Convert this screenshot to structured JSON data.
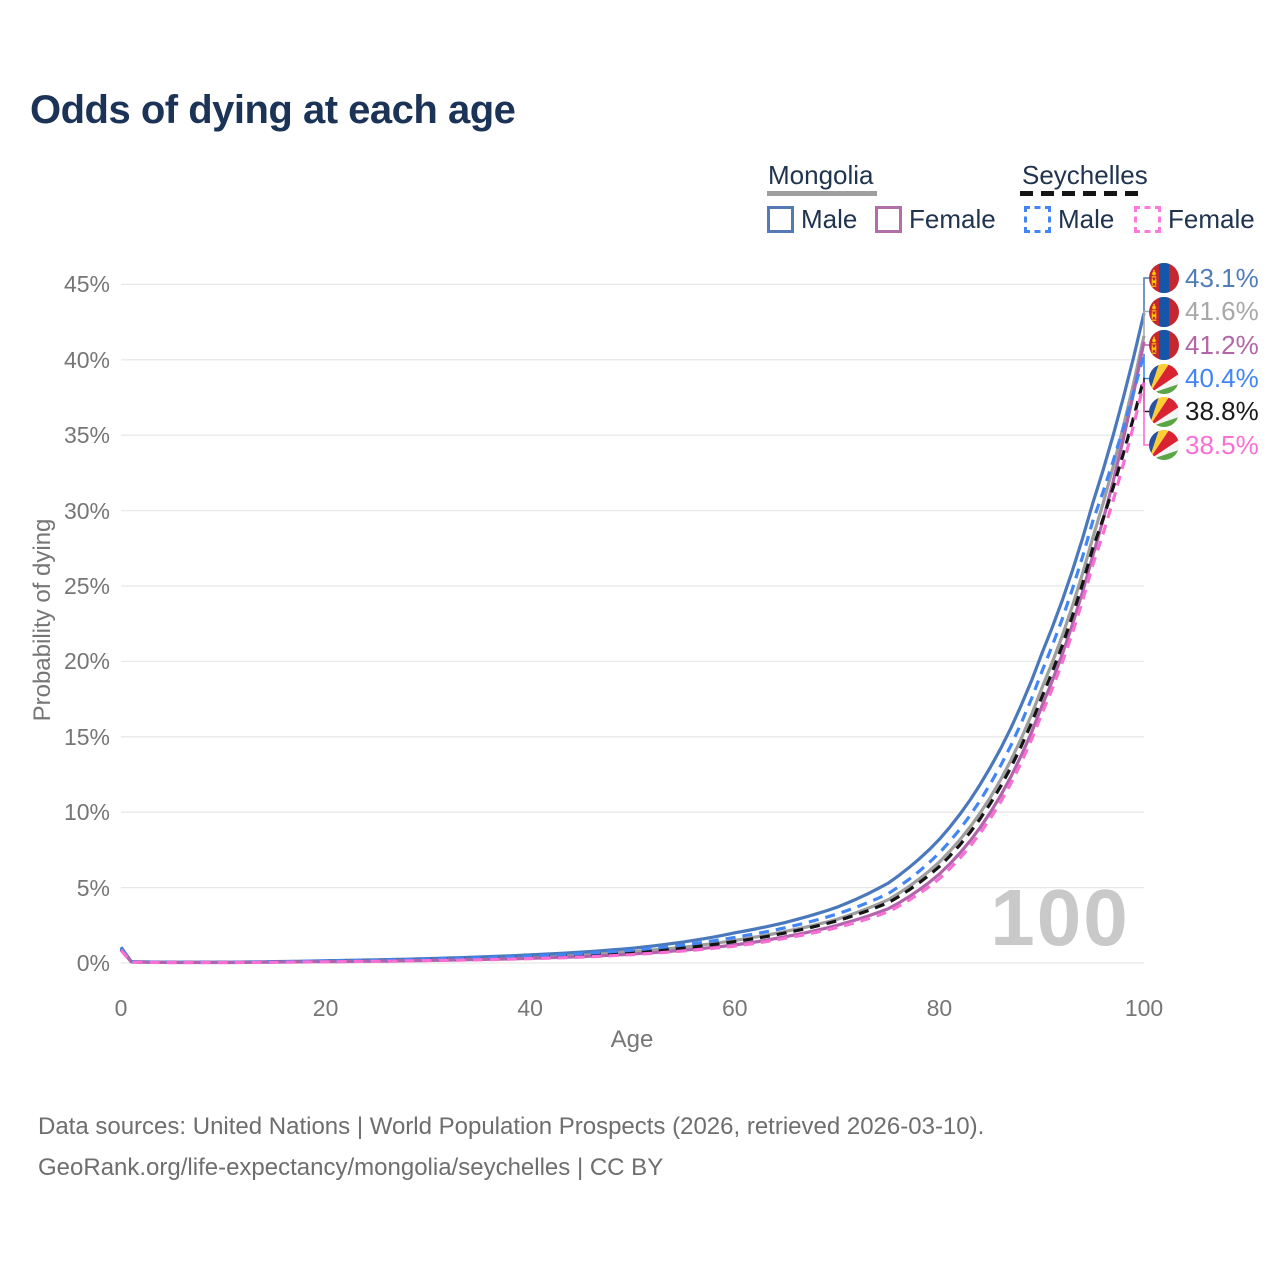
{
  "title": "Odds of dying at each age",
  "watermark": "100",
  "legend": {
    "groups": [
      {
        "name": "Mongolia",
        "line_style": "solid",
        "underline_color": "#9e9e9e",
        "items": [
          {
            "label": "Male",
            "color": "#5479b4"
          },
          {
            "label": "Female",
            "color": "#b06fa8"
          }
        ]
      },
      {
        "name": "Seychelles",
        "line_style": "dashed",
        "underline_color": "#151515",
        "items": [
          {
            "label": "Male",
            "color": "#4285f4"
          },
          {
            "label": "Female",
            "color": "#fc7bda"
          }
        ]
      }
    ]
  },
  "end_labels": [
    {
      "value": "43.1%",
      "color": "#4f7cba",
      "flag": "mongolia",
      "series": "mongolia_male"
    },
    {
      "value": "41.6%",
      "color": "#a8a8a8",
      "flag": "mongolia",
      "series": "mongolia_all"
    },
    {
      "value": "41.2%",
      "color": "#b465a8",
      "flag": "mongolia",
      "series": "mongolia_female"
    },
    {
      "value": "40.4%",
      "color": "#4285f4",
      "flag": "seychelles",
      "series": "seychelles_male"
    },
    {
      "value": "38.8%",
      "color": "#1a1a1a",
      "flag": "seychelles",
      "series": "seychelles_all"
    },
    {
      "value": "38.5%",
      "color": "#fb6ed6",
      "flag": "seychelles",
      "series": "seychelles_female"
    }
  ],
  "flags": {
    "mongolia": {
      "red": "#c4272f",
      "blue": "#1556a8",
      "yellow": "#f9cf02"
    },
    "seychelles": {
      "blue": "#2a52a0",
      "yellow": "#fcce33",
      "red": "#da2332",
      "white": "#f4f4f4",
      "green": "#5aa546"
    }
  },
  "footer": {
    "line1": "Data sources: United Nations | World Population Prospects (2026, retrieved 2026-03-10).",
    "line2": "GeoRank.org/life-expectancy/mongolia/seychelles | CC BY"
  },
  "chart_data": {
    "type": "line",
    "title": "Odds of dying at each age",
    "xlabel": "Age",
    "ylabel": "Probability of dying",
    "xlim": [
      0,
      100
    ],
    "ylim": [
      0,
      45
    ],
    "grid": true,
    "legend_position": "top-right",
    "yticks": {
      "values": [
        0,
        5,
        10,
        15,
        20,
        25,
        30,
        35,
        40,
        45
      ],
      "labels": [
        "0%",
        "5%",
        "10%",
        "15%",
        "20%",
        "25%",
        "30%",
        "35%",
        "40%",
        "45%"
      ]
    },
    "xticks": {
      "values": [
        0,
        20,
        40,
        60,
        80,
        100
      ],
      "labels": [
        "0",
        "20",
        "40",
        "60",
        "80",
        "100"
      ]
    },
    "x": [
      0,
      1,
      5,
      10,
      15,
      20,
      25,
      30,
      35,
      40,
      45,
      50,
      55,
      60,
      65,
      70,
      75,
      80,
      85,
      90,
      95,
      100
    ],
    "series": [
      {
        "id": "mongolia_all",
        "name": "Mongolia (all)",
        "color": "#9e9e9e",
        "dash": false,
        "values": [
          1.0,
          0.08,
          0.04,
          0.04,
          0.07,
          0.12,
          0.16,
          0.22,
          0.3,
          0.41,
          0.55,
          0.76,
          1.05,
          1.5,
          2.1,
          2.9,
          4.2,
          6.7,
          11.0,
          18.2,
          28.2,
          41.6
        ]
      },
      {
        "id": "mongolia_male",
        "name": "Mongolia Male",
        "color": "#4a78ba",
        "dash": false,
        "values": [
          1.05,
          0.09,
          0.05,
          0.05,
          0.09,
          0.15,
          0.21,
          0.29,
          0.4,
          0.54,
          0.72,
          0.98,
          1.4,
          2.0,
          2.7,
          3.7,
          5.3,
          8.2,
          13.0,
          20.5,
          30.5,
          43.1
        ]
      },
      {
        "id": "mongolia_female",
        "name": "Mongolia Female",
        "color": "#b164ab",
        "dash": false,
        "values": [
          0.9,
          0.07,
          0.03,
          0.03,
          0.06,
          0.09,
          0.12,
          0.17,
          0.23,
          0.31,
          0.42,
          0.6,
          0.85,
          1.2,
          1.75,
          2.5,
          3.6,
          5.9,
          10.0,
          17.0,
          27.0,
          41.2
        ]
      },
      {
        "id": "seychelles_all",
        "name": "Seychelles (all)",
        "color": "#141414",
        "dash": true,
        "values": [
          0.9,
          0.07,
          0.04,
          0.04,
          0.07,
          0.11,
          0.15,
          0.21,
          0.28,
          0.38,
          0.52,
          0.72,
          1.0,
          1.42,
          2.0,
          2.8,
          4.0,
          6.4,
          10.6,
          17.6,
          27.5,
          38.8
        ]
      },
      {
        "id": "seychelles_male",
        "name": "Seychelles Male",
        "color": "#4285f4",
        "dash": true,
        "values": [
          0.95,
          0.08,
          0.04,
          0.04,
          0.08,
          0.13,
          0.18,
          0.25,
          0.34,
          0.46,
          0.62,
          0.85,
          1.2,
          1.7,
          2.35,
          3.25,
          4.6,
          7.3,
          11.9,
          19.3,
          29.3,
          40.4
        ]
      },
      {
        "id": "seychelles_female",
        "name": "Seychelles Female",
        "color": "#f96ed3",
        "dash": true,
        "values": [
          0.85,
          0.06,
          0.03,
          0.03,
          0.05,
          0.08,
          0.11,
          0.16,
          0.21,
          0.29,
          0.39,
          0.56,
          0.8,
          1.12,
          1.65,
          2.35,
          3.4,
          5.6,
          9.6,
          16.5,
          26.4,
          38.5
        ]
      }
    ]
  }
}
